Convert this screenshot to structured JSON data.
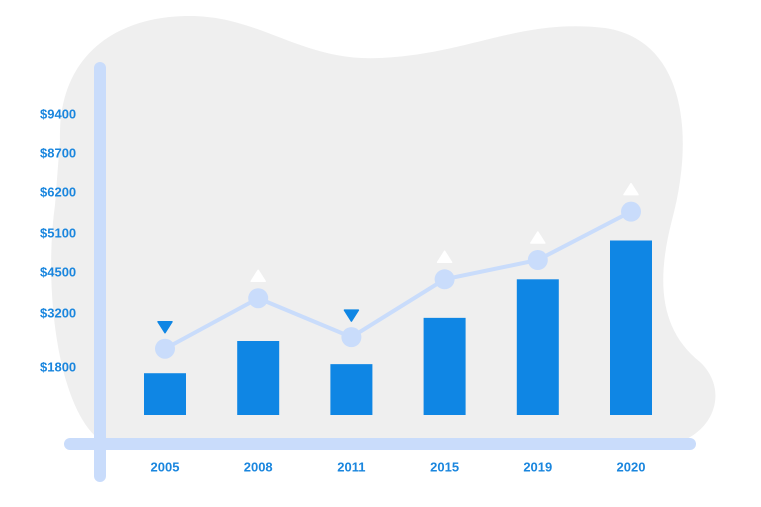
{
  "chart_data": {
    "type": "bar",
    "categories": [
      "2005",
      "2008",
      "2011",
      "2015",
      "2019",
      "2020"
    ],
    "series": [
      {
        "type": "bar",
        "color": "#0f86e4",
        "values": [
          1600,
          2500,
          1900,
          3100,
          4300,
          5000
        ]
      },
      {
        "type": "line",
        "color": "#c9dcfb",
        "values": [
          2300,
          3700,
          2600,
          4300,
          4700,
          5700
        ]
      }
    ],
    "ylim": [
      0,
      9400
    ],
    "yticks": [
      {
        "value": 9400,
        "label": "$9400"
      },
      {
        "value": 8700,
        "label": "$8700"
      },
      {
        "value": 6200,
        "label": "$6200"
      },
      {
        "value": 5100,
        "label": "$5100"
      },
      {
        "value": 4500,
        "label": "$4500"
      },
      {
        "value": 3200,
        "label": "$3200"
      },
      {
        "value": 1800,
        "label": "$1800"
      }
    ]
  }
}
